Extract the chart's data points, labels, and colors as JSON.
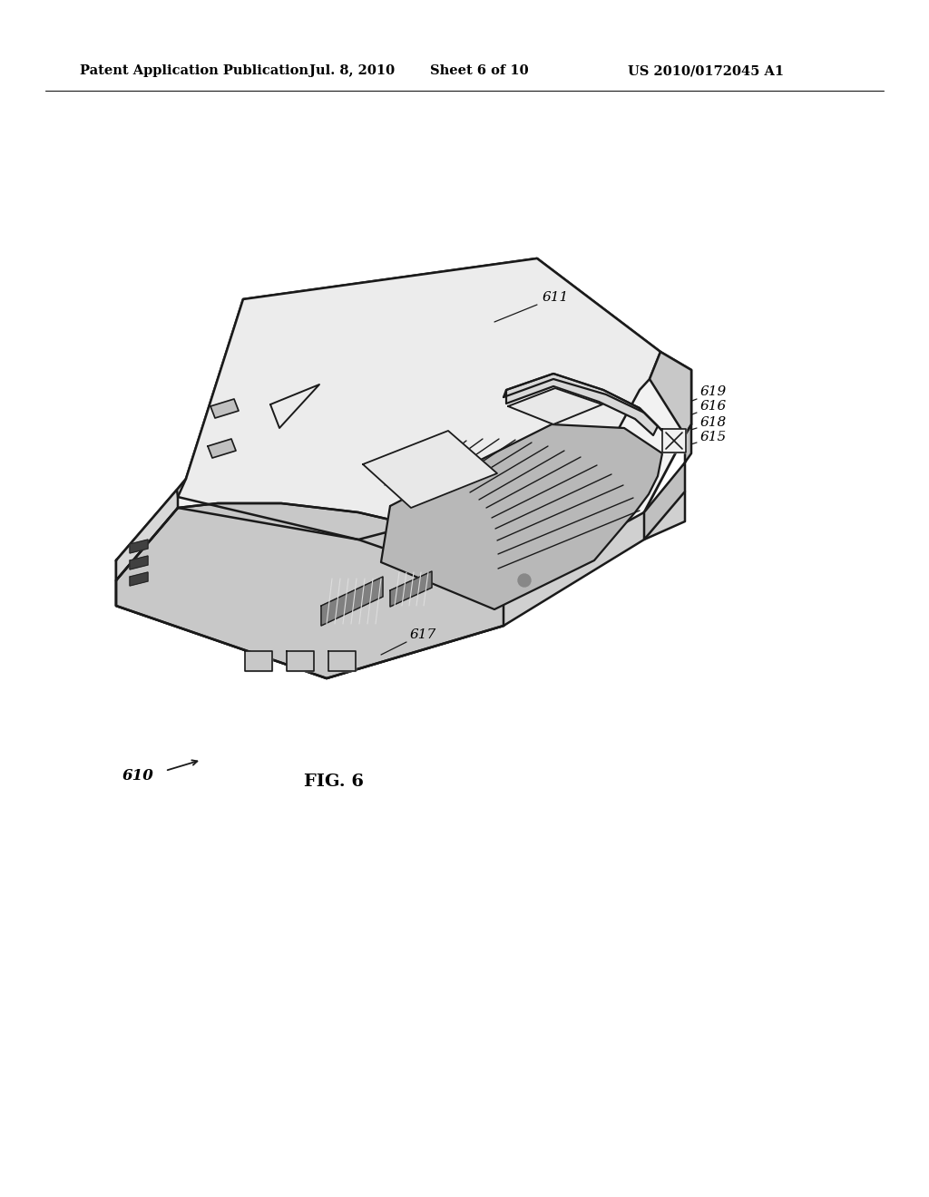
{
  "background_color": "#ffffff",
  "line_color": "#1a1a1a",
  "header_text": "Patent Application Publication",
  "header_date": "Jul. 8, 2010",
  "header_sheet": "Sheet 6 of 10",
  "header_patent": "US 2010/0172045 A1",
  "fig_label": "FIG. 6",
  "component_label": "610"
}
